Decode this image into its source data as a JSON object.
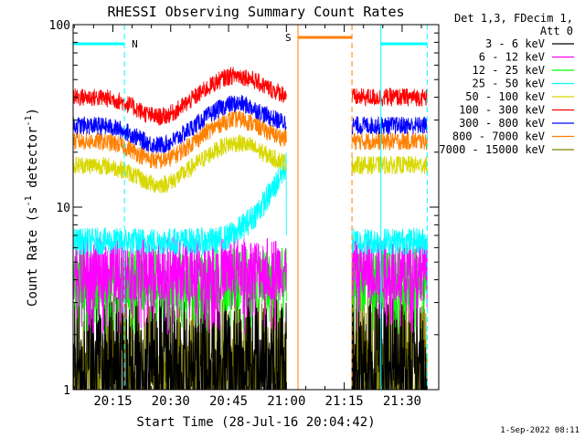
{
  "chart_data": {
    "type": "line",
    "title": "RHESSI Observing Summary Count Rates",
    "xlabel": "Start Time (28-Jul-16 20:04:42)",
    "ylabel_main": "Count Rate (s",
    "ylabel_sup": "-1",
    "ylabel_mid": " detector",
    "ylabel_sup2": "-1",
    "ylabel_end": ")",
    "yscale": "log",
    "ylim": [
      1,
      100
    ],
    "xlim_minutes": [
      20.1,
      21.66
    ],
    "x_ticks": [
      "20:15",
      "20:30",
      "20:45",
      "21:00",
      "21:15",
      "21:30"
    ],
    "y_ticks": [
      "1",
      "10",
      "100"
    ],
    "legend_header": [
      "Det 1,3, FDecim 1,",
      "Att 0"
    ],
    "timestamp": "1-Sep-2022 08:11",
    "flags": [
      {
        "label": "N",
        "color": "#00ffff"
      },
      {
        "label": "S",
        "color": "#ff8000"
      }
    ],
    "gap_minutes": [
      21.0,
      21.27
    ],
    "series": [
      {
        "name": "3 - 6 keV",
        "color": "#000000",
        "level": 1.5
      },
      {
        "name": "6 - 12 keV",
        "color": "#ff00ff",
        "level": 4.6
      },
      {
        "name": "12 - 25 keV",
        "color": "#00ff00",
        "level": 4.0
      },
      {
        "name": "25 - 50 keV",
        "color": "#00ffff",
        "level": 6.5
      },
      {
        "name": "50 - 100 keV",
        "color": "#d8d800",
        "level": 17
      },
      {
        "name": "100 - 300 keV",
        "color": "#ff0000",
        "level": 40
      },
      {
        "name": "300 - 800 keV",
        "color": "#0000ff",
        "level": 28
      },
      {
        "name": "800 - 7000 keV",
        "color": "#ff8000",
        "level": 23
      },
      {
        "name": "7000 - 15000 keV",
        "color": "#808000",
        "level": 1.6
      }
    ]
  }
}
